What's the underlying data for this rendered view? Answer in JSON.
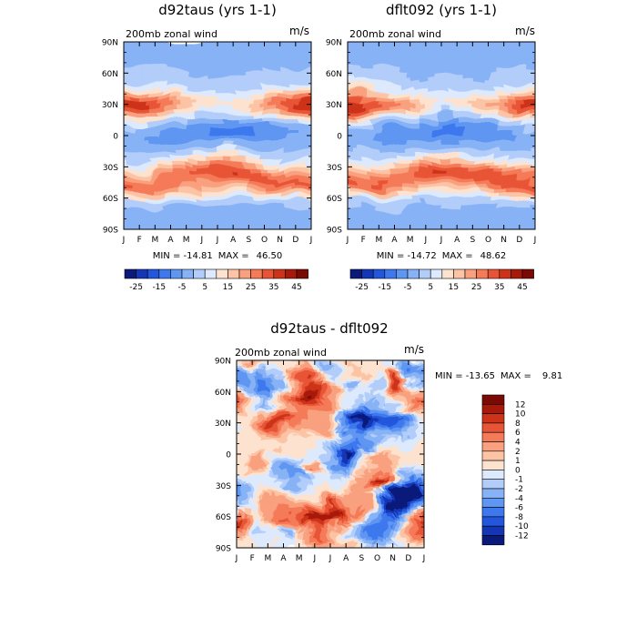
{
  "chart_data": [
    {
      "type": "heatmap",
      "title": "d92taus (yrs 1-1)",
      "subtitle": "200mb zonal wind",
      "units": "m/s",
      "x_ticks": [
        "J",
        "F",
        "M",
        "A",
        "M",
        "J",
        "J",
        "A",
        "S",
        "O",
        "N",
        "D",
        "J"
      ],
      "y_ticks": [
        "90N",
        "60N",
        "30N",
        "0",
        "30S",
        "60S",
        "90S"
      ],
      "min_label": "MIN = -14.81",
      "max_label": "MAX =",
      "max_value": "46.50",
      "min": -14.81,
      "max": 46.5,
      "colorbar_labels": [
        "-25",
        "-15",
        "-5",
        "5",
        "15",
        "25",
        "35",
        "45"
      ]
    },
    {
      "type": "heatmap",
      "title": "dflt092 (yrs 1-1)",
      "subtitle": "200mb zonal wind",
      "units": "m/s",
      "x_ticks": [
        "J",
        "F",
        "M",
        "A",
        "M",
        "J",
        "J",
        "A",
        "S",
        "O",
        "N",
        "D",
        "J"
      ],
      "y_ticks": [
        "90N",
        "60N",
        "30N",
        "0",
        "30S",
        "60S",
        "90S"
      ],
      "min_label": "MIN = -14.72",
      "max_label": "MAX =",
      "max_value": "48.62",
      "min": -14.72,
      "max": 48.62,
      "colorbar_labels": [
        "-25",
        "-15",
        "-5",
        "5",
        "15",
        "25",
        "35",
        "45"
      ]
    },
    {
      "type": "heatmap",
      "title": "d92taus - dflt092",
      "subtitle": "200mb zonal wind",
      "units": "m/s",
      "x_ticks": [
        "J",
        "F",
        "M",
        "A",
        "M",
        "J",
        "J",
        "A",
        "S",
        "O",
        "N",
        "D",
        "J"
      ],
      "y_ticks": [
        "90N",
        "60N",
        "30N",
        "0",
        "30S",
        "60S",
        "90S"
      ],
      "min_label": "MIN = -13.65",
      "max_label": "MAX =",
      "max_value": "9.81",
      "min": -13.65,
      "max": 9.81,
      "colorbar_labels": [
        "12",
        "10",
        "8",
        "6",
        "4",
        "2",
        "1",
        "0",
        "-1",
        "-2",
        "-4",
        "-6",
        "-8",
        "-10",
        "-12"
      ]
    }
  ],
  "colors": {
    "top_scale": [
      "#0a1a7a",
      "#1436b4",
      "#2456dc",
      "#3d78ee",
      "#5f96f2",
      "#88b2f6",
      "#b2cdfa",
      "#dde9fc",
      "#fde3cf",
      "#fcc4a5",
      "#f9a07e",
      "#f57a58",
      "#e85436",
      "#cd3318",
      "#a71a0b",
      "#7a0a04"
    ],
    "diff_scale": [
      "#7a0a04",
      "#a71a0b",
      "#cd3318",
      "#e85436",
      "#f57a58",
      "#f9a07e",
      "#fcc4a5",
      "#fde3cf",
      "#dde9fc",
      "#b2cdfa",
      "#88b2f6",
      "#5f96f2",
      "#3d78ee",
      "#2456dc",
      "#1436b4",
      "#0a1a7a"
    ]
  }
}
